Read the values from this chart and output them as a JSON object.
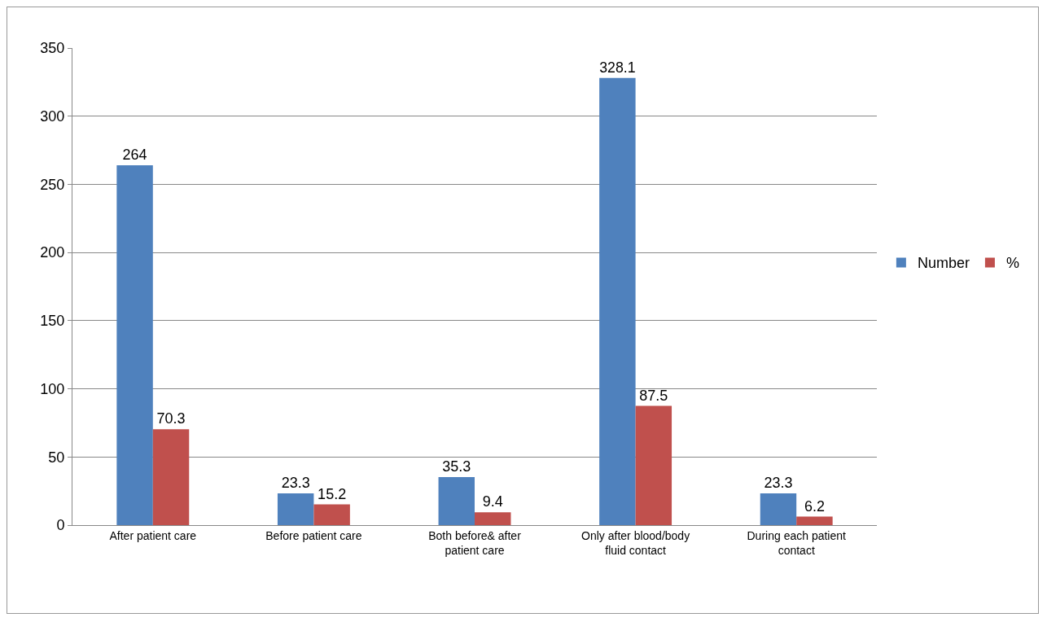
{
  "chart_data": {
    "type": "bar",
    "categories": [
      "After patient care",
      "Before patient care",
      "Both before& after patient care",
      "Only after blood/body fluid contact",
      "During each patient contact"
    ],
    "series": [
      {
        "name": "Number",
        "color": "#4f81bd",
        "values": [
          264,
          23.3,
          35.3,
          328.1,
          23.3
        ]
      },
      {
        "name": "%",
        "color": "#c0504d",
        "values": [
          70.3,
          15.2,
          9.4,
          87.5,
          6.2
        ]
      }
    ],
    "ylim": [
      0,
      350
    ],
    "yticks": [
      0,
      50,
      100,
      150,
      200,
      250,
      300,
      350
    ],
    "grid": "y",
    "legend": "right",
    "data_labels": true
  }
}
